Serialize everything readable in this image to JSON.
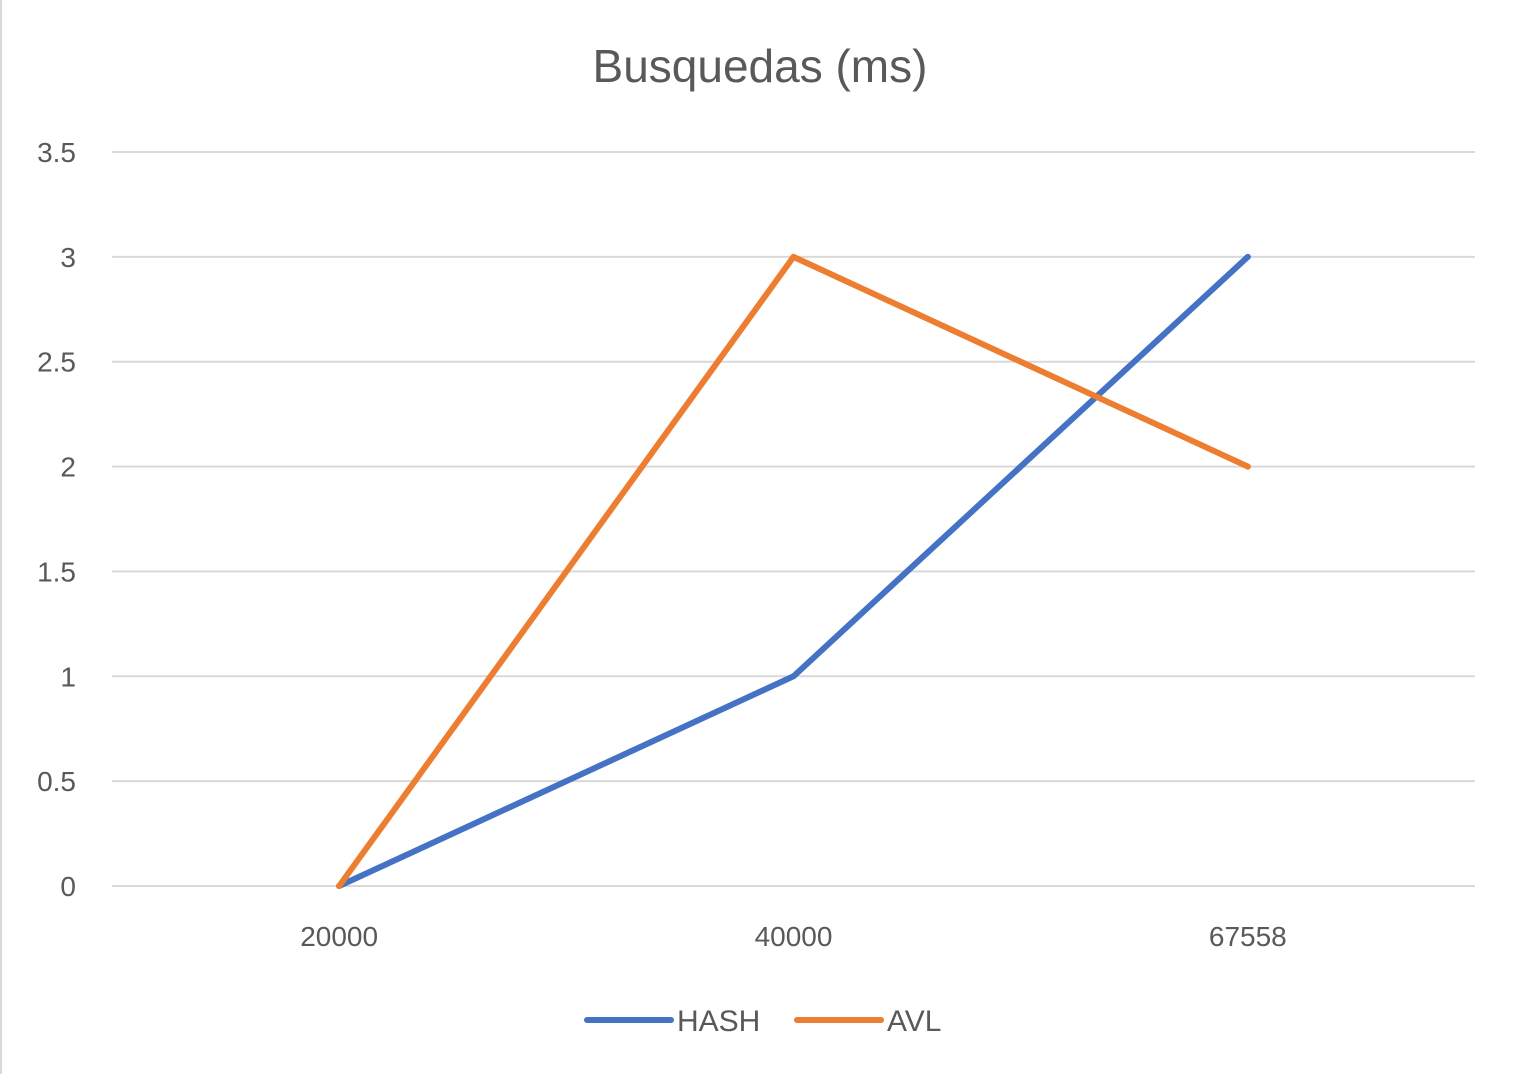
{
  "chart_data": {
    "type": "line",
    "title": "Busquedas (ms)",
    "xlabel": "",
    "ylabel": "",
    "categories": [
      "20000",
      "40000",
      "67558"
    ],
    "series": [
      {
        "name": "HASH",
        "color": "#4472C4",
        "values": [
          0,
          1,
          3
        ]
      },
      {
        "name": "AVL",
        "color": "#ED7D31",
        "values": [
          0,
          3,
          2
        ]
      }
    ],
    "ylim": [
      0,
      3.5
    ],
    "yticks": [
      "0",
      "0.5",
      "1",
      "1.5",
      "2",
      "2.5",
      "3",
      "3.5"
    ],
    "grid": true,
    "gridline_color": "#d9d9d9",
    "legend_position": "bottom"
  }
}
